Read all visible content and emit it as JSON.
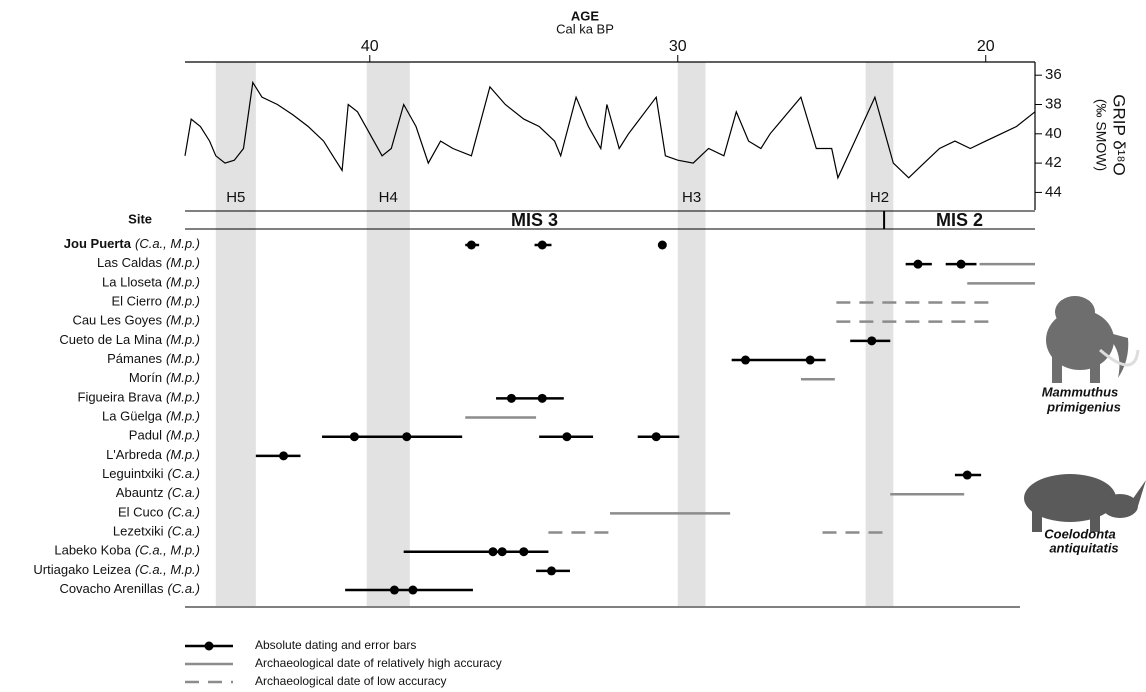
{
  "chart_data": {
    "type": "line",
    "title": "AGE",
    "subtitle": "Cal ka BP",
    "xlim": [
      46,
      18.4
    ],
    "xticks": [
      40,
      30,
      20
    ],
    "y_label": "GRIP δ¹⁸O",
    "y_unit": "(‰ SMOW)",
    "ylim": [
      35.1,
      45.2
    ],
    "yticks": [
      36,
      38,
      40,
      42,
      44
    ],
    "y_inverted": true,
    "color": "#000000",
    "x": [
      46.0,
      45.8,
      45.5,
      45.2,
      45.0,
      44.7,
      44.4,
      44.1,
      43.8,
      43.5,
      43.0,
      42.5,
      42.0,
      41.5,
      41.2,
      40.9,
      40.7,
      40.4,
      40.0,
      39.6,
      39.3,
      38.9,
      38.5,
      38.1,
      37.7,
      37.3,
      36.7,
      36.1,
      35.6,
      35.0,
      34.5,
      34.0,
      33.8,
      33.3,
      32.9,
      32.5,
      32.3,
      31.9,
      31.6,
      30.7,
      30.4,
      30.0,
      29.5,
      29.0,
      28.5,
      28.1,
      27.7,
      27.3,
      27.0,
      26.0,
      25.5,
      25.0,
      24.8,
      24.25,
      23.6,
      23.0,
      22.5,
      22.0,
      21.5,
      21.0,
      20.5,
      20.0,
      19.5,
      19.0,
      18.4
    ],
    "values": [
      41.5,
      39,
      39.5,
      40.5,
      41.5,
      42,
      41.8,
      41,
      36.5,
      37.5,
      38,
      38.7,
      39.5,
      40.5,
      41.5,
      42.5,
      38,
      38.5,
      40,
      41.5,
      41,
      38,
      39.5,
      42,
      40.5,
      41,
      41.5,
      36.8,
      38,
      39,
      39.5,
      40.5,
      41.5,
      37.5,
      39.5,
      41,
      38,
      41,
      40,
      37.5,
      41.5,
      41.8,
      42,
      41,
      41.5,
      38.5,
      40.5,
      41,
      40,
      37.5,
      41,
      41,
      43,
      40.5,
      37.5,
      42,
      43,
      42,
      41,
      40.5,
      41,
      40.5,
      40,
      39.5,
      38.5
    ],
    "heinrich": [
      {
        "label": "H5",
        "start": 45.0,
        "end": 43.7
      },
      {
        "label": "H4",
        "start": 40.1,
        "end": 38.7
      },
      {
        "label": "H3",
        "start": 30.0,
        "end": 29.1
      },
      {
        "label": "H2",
        "start": 23.9,
        "end": 23.0
      }
    ],
    "mis": [
      "MIS 3",
      "MIS 2"
    ],
    "mis_boundary": 23.3,
    "site_header": "Site",
    "sites": [
      {
        "name": "Jou Puerta",
        "taxa": "(C.a., M.p.)",
        "bold": true,
        "points": [
          36.7,
          34.4,
          30.5
        ],
        "bars": [
          [
            36.9,
            36.45
          ],
          [
            34.65,
            34.1
          ]
        ],
        "high": [],
        "low": []
      },
      {
        "name": "Las Caldas",
        "taxa": "(M.p.)",
        "points": [
          22.2,
          20.8
        ],
        "bars": [
          [
            22.6,
            21.75
          ],
          [
            21.3,
            20.3
          ]
        ],
        "high": [
          [
            20.2,
            18.4
          ]
        ],
        "low": []
      },
      {
        "name": "La Lloseta",
        "taxa": "(M.p.)",
        "points": [],
        "bars": [],
        "high": [
          [
            20.6,
            18.4
          ]
        ],
        "low": []
      },
      {
        "name": "El Cierro",
        "taxa": "(M.p.)",
        "points": [],
        "bars": [],
        "high": [],
        "low": [
          [
            24.85,
            19.9
          ]
        ]
      },
      {
        "name": "Cau Les Goyes",
        "taxa": "(M.p.)",
        "points": [],
        "bars": [],
        "high": [],
        "low": [
          [
            24.85,
            19.9
          ]
        ]
      },
      {
        "name": "Cueto de La Mina",
        "taxa": "(M.p.)",
        "points": [
          23.7
        ],
        "bars": [
          [
            24.4,
            23.1
          ]
        ],
        "high": [],
        "low": []
      },
      {
        "name": "Pámanes",
        "taxa": "(M.p.)",
        "points": [
          27.8,
          25.7
        ],
        "bars": [
          [
            28.25,
            25.2
          ]
        ],
        "high": [],
        "low": []
      },
      {
        "name": "Morín",
        "taxa": "(M.p.)",
        "points": [],
        "bars": [],
        "high": [
          [
            26.0,
            24.9
          ]
        ],
        "low": []
      },
      {
        "name": "Figueira Brava",
        "taxa": "(M.p.)",
        "points": [
          35.4,
          34.4
        ],
        "bars": [
          [
            35.9,
            33.7
          ]
        ],
        "high": [],
        "low": []
      },
      {
        "name": "La Güelga",
        "taxa": "(M.p.)",
        "points": [],
        "bars": [],
        "high": [
          [
            36.9,
            34.6
          ]
        ],
        "low": []
      },
      {
        "name": "Padul",
        "taxa": "(M.p.)",
        "points": [
          40.5,
          38.8,
          33.6,
          30.7
        ],
        "bars": [
          [
            41.55,
            37.0
          ],
          [
            34.5,
            32.75
          ],
          [
            31.3,
            29.95
          ]
        ],
        "high": [],
        "low": []
      },
      {
        "name": "L'Arbreda",
        "taxa": "(M.p.)",
        "points": [
          42.8
        ],
        "bars": [
          [
            43.7,
            42.25
          ]
        ],
        "high": [],
        "low": []
      },
      {
        "name": "Leguintxiki",
        "taxa": "(C.a.)",
        "points": [
          20.6
        ],
        "bars": [
          [
            21.0,
            20.15
          ]
        ],
        "high": [],
        "low": []
      },
      {
        "name": "Abauntz",
        "taxa": "(C.a.)",
        "points": [],
        "bars": [],
        "high": [
          [
            23.1,
            20.7
          ]
        ],
        "low": []
      },
      {
        "name": "El Cuco",
        "taxa": "(C.a.)",
        "points": [],
        "bars": [],
        "high": [
          [
            32.2,
            28.3
          ]
        ],
        "low": []
      },
      {
        "name": "Lezetxiki",
        "taxa": "(C.a.)",
        "points": [],
        "bars": [],
        "high": [],
        "low": [
          [
            34.2,
            32.2
          ],
          [
            25.3,
            23.3
          ]
        ]
      },
      {
        "name": "Labeko Koba",
        "taxa": "(C.a., M.p.)",
        "points": [
          36.0,
          35.7,
          35.0
        ],
        "bars": [
          [
            38.9,
            34.2
          ]
        ],
        "high": [],
        "low": []
      },
      {
        "name": "Urtiagako Leizea",
        "taxa": "(C.a., M.p.)",
        "points": [
          34.1
        ],
        "bars": [
          [
            34.6,
            33.5
          ]
        ],
        "high": [],
        "low": []
      },
      {
        "name": "Covacho Arenillas",
        "taxa": "(C.a.)",
        "points": [
          39.2,
          38.6
        ],
        "bars": [
          [
            40.8,
            36.65
          ]
        ],
        "high": [],
        "low": []
      }
    ],
    "legend": [
      {
        "label": "Absolute dating and error bars",
        "style": "point"
      },
      {
        "label": "Archaeological date of relatively high accuracy",
        "style": "high"
      },
      {
        "label": "Archaeological date of low accuracy",
        "style": "low"
      }
    ],
    "species": [
      [
        "Mammuthus",
        "primigenius"
      ],
      [
        "Coelodonta",
        "antiquitatis"
      ]
    ]
  }
}
